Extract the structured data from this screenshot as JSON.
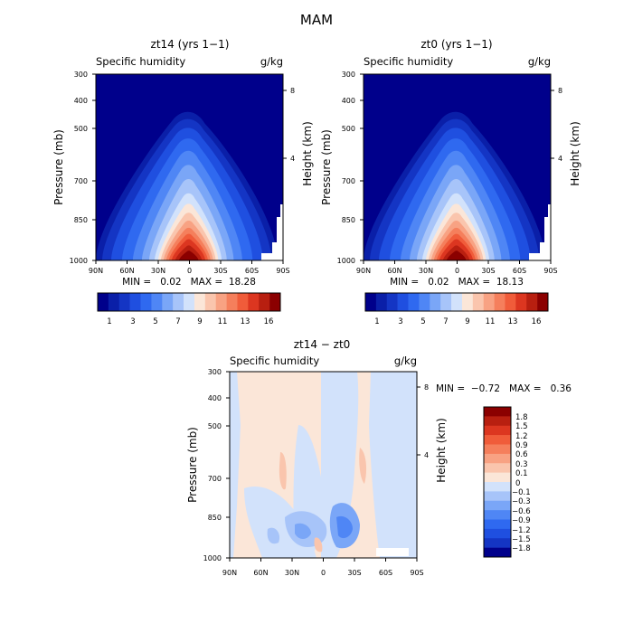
{
  "figure": {
    "title": "MAM"
  },
  "panels": [
    {
      "id": "top-left",
      "title": "zt14 (yrs 1−1)",
      "left_label": "Specific humidity",
      "units": "g/kg",
      "min_max_text": "MIN =   0.02   MAX =  18.28",
      "colorbar_labels": [
        "1",
        "3",
        "5",
        "7",
        "9",
        "11",
        "13",
        "16"
      ]
    },
    {
      "id": "top-right",
      "title": "zt0 (yrs 1−1)",
      "left_label": "Specific humidity",
      "units": "g/kg",
      "min_max_text": "MIN =   0.02   MAX =  18.13",
      "colorbar_labels": [
        "1",
        "3",
        "5",
        "7",
        "9",
        "11",
        "13",
        "16"
      ]
    },
    {
      "id": "bottom",
      "title": "zt14 − zt0",
      "left_label": "Specific humidity",
      "units": "g/kg",
      "min_max_text": "MIN =  −0.72   MAX =   0.36",
      "colorbar_labels": [
        "1.8",
        "1.5",
        "1.2",
        "0.9",
        "0.6",
        "0.3",
        "0.1",
        "0",
        "−0.1",
        "−0.3",
        "−0.6",
        "−0.9",
        "−1.2",
        "−1.5",
        "−1.8"
      ]
    }
  ],
  "chart_data": [
    {
      "type": "heatmap",
      "title": "zt14 (yrs 1−1)",
      "ylabel": "Pressure (mb)",
      "y2label": "Height (km)",
      "x_ticks": [
        "90N",
        "60N",
        "30N",
        "0",
        "30S",
        "60S",
        "90S"
      ],
      "y_ticks": [
        "300",
        "400",
        "500",
        "700",
        "850",
        "1000"
      ],
      "y2_ticks": [
        "8",
        "4"
      ],
      "xlim": [
        90,
        -90
      ],
      "ylim_mb": [
        1000,
        300
      ],
      "min": 0.02,
      "max": 18.28
    },
    {
      "type": "heatmap",
      "title": "zt0 (yrs 1−1)",
      "ylabel": "Pressure (mb)",
      "y2label": "Height (km)",
      "x_ticks": [
        "90N",
        "60N",
        "30N",
        "0",
        "30S",
        "60S",
        "90S"
      ],
      "y_ticks": [
        "300",
        "400",
        "500",
        "700",
        "850",
        "1000"
      ],
      "y2_ticks": [
        "8",
        "4"
      ],
      "xlim": [
        90,
        -90
      ],
      "ylim_mb": [
        1000,
        300
      ],
      "min": 0.02,
      "max": 18.13
    },
    {
      "type": "heatmap",
      "title": "zt14 − zt0",
      "ylabel": "Pressure (mb)",
      "y2label": "Height (km)",
      "x_ticks": [
        "90N",
        "60N",
        "30N",
        "0",
        "30S",
        "60S",
        "90S"
      ],
      "y_ticks": [
        "300",
        "400",
        "500",
        "700",
        "850",
        "1000"
      ],
      "y2_ticks": [
        "8",
        "4"
      ],
      "xlim": [
        90,
        -90
      ],
      "ylim_mb": [
        1000,
        300
      ],
      "min": -0.72,
      "max": 0.36
    }
  ],
  "colors": {
    "sequential": [
      "#00008b",
      "#0a1fa8",
      "#1435c4",
      "#1f4fe0",
      "#2f69f0",
      "#4f86f5",
      "#7aa6f7",
      "#a7c4f9",
      "#d2e2fb",
      "#fbe6d8",
      "#fac5ad",
      "#f8a283",
      "#f57f5c",
      "#f05c3a",
      "#dc3620",
      "#b81f10",
      "#8b0000"
    ],
    "diverging_top_to_bottom": [
      "#8b0000",
      "#b81f10",
      "#dc3620",
      "#f05c3a",
      "#f57f5c",
      "#f8a283",
      "#fac5ad",
      "#fbe6d8",
      "#d2e2fb",
      "#a7c4f9",
      "#7aa6f7",
      "#4f86f5",
      "#2f69f0",
      "#1f4fe0",
      "#1435c4",
      "#00008b"
    ]
  }
}
